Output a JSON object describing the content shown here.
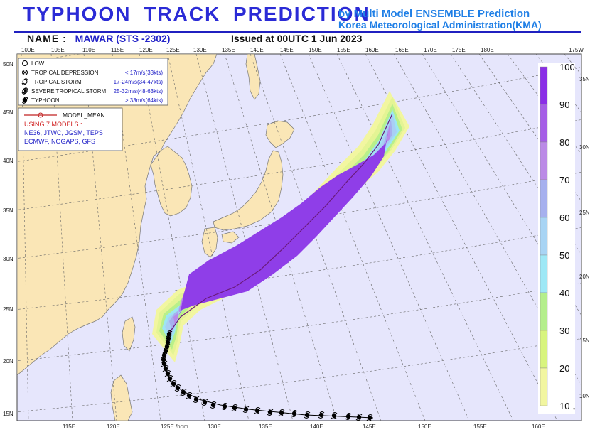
{
  "header": {
    "title": "TYPHOON  TRACK  PREDICTION",
    "by_line": "by Multi Model ENSEMBLE Prediction",
    "agency": "Korea Meteorological Administration(KMA)",
    "name_label": "NAME :",
    "name_value": "MAWAR (STS -2302)",
    "issued": "Issued at 00UTC  1 Jun 2023"
  },
  "top_lon_labels": [
    "100E",
    "105E",
    "110E",
    "115E",
    "120E",
    "125E",
    "130E",
    "135E",
    "140E",
    "145E",
    "150E",
    "155E",
    "160E",
    "165E",
    "170E",
    "175E",
    "180E",
    "175W"
  ],
  "bottom_lon_labels": [
    "115E",
    "120E",
    "125E",
    "130E",
    "135E",
    "140E",
    "145E",
    "150E",
    "155E",
    "160E"
  ],
  "bottom_hom": "/hom",
  "left_lat_labels": [
    "50N",
    "45N",
    "40N",
    "35N",
    "30N",
    "25N",
    "20N",
    "15N"
  ],
  "right_lat_labels": [
    "35N",
    "30N",
    "25N",
    "20N",
    "15N",
    "10N"
  ],
  "legend": {
    "items": [
      {
        "symbol": "low-icon",
        "name": "LOW",
        "speed": ""
      },
      {
        "symbol": "tropical-depression-icon",
        "name": "TROPICAL DEPRESSION",
        "speed": "< 17m/s(33kts)"
      },
      {
        "symbol": "tropical-storm-icon",
        "name": "TROPICAL STORM",
        "speed": "17-24m/s(34-47kts)"
      },
      {
        "symbol": "severe-tropical-storm-icon",
        "name": "SEVERE TROPICAL STORM",
        "speed": "25-32m/s(48-63kts)"
      },
      {
        "symbol": "typhoon-icon",
        "name": "TYPHOON",
        "speed": "> 33m/s(64kts)"
      }
    ],
    "model_mean": "MODEL_MEAN",
    "using": "USING 7 MODELS :",
    "models_line1": "NE36, JTWC, JGSM, TEPS",
    "models_line2": "ECMWF, NOGAPS, GFS"
  },
  "colorbar": {
    "labels": [
      "100",
      "90",
      "80",
      "70",
      "60",
      "50",
      "40",
      "30",
      "20",
      "10"
    ],
    "colors": [
      "#8a2ee6",
      "#a55ee6",
      "#bb8ae6",
      "#a6b0ee",
      "#a8d4f4",
      "#9ee8f6",
      "#b4ee8c",
      "#d8f47e",
      "#f2f6a0"
    ],
    "corner": "°"
  },
  "colors": {
    "land": "#fae6b6",
    "sea": "#e6e6fc",
    "header_blue": "#2b2bd6",
    "subtitle_blue": "#1f7fe6",
    "prob_outer": "#e7f59a",
    "prob_mid": "#b8f08a",
    "prob_light": "#9de6f2",
    "prob_blue": "#a9bff0",
    "prob_purple": "#8f3ee8"
  }
}
